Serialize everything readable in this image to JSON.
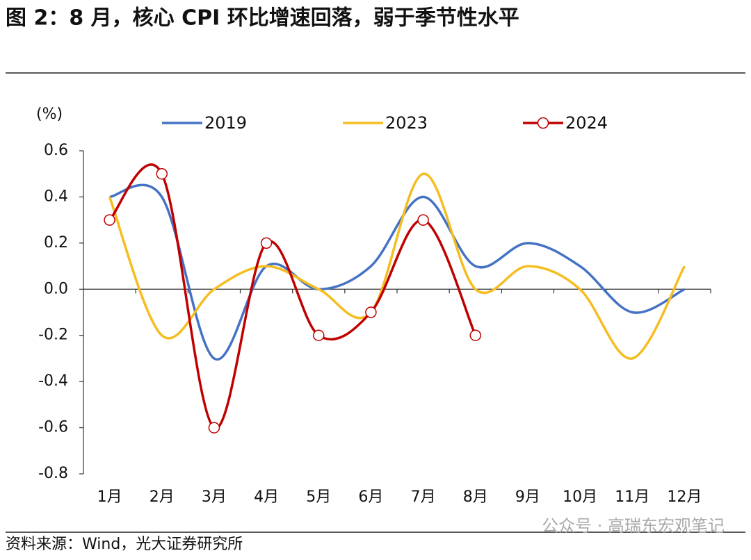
{
  "chart_data": {
    "type": "line",
    "title": "图 2：8 月，核心 CPI 环比增速回落，弱于季节性水平",
    "y_label": "(%)",
    "categories": [
      "1月",
      "2月",
      "3月",
      "4月",
      "5月",
      "6月",
      "7月",
      "8月",
      "9月",
      "10月",
      "11月",
      "12月"
    ],
    "series": [
      {
        "name": "2019",
        "color": "#4472c4",
        "values": [
          0.4,
          0.4,
          -0.3,
          0.1,
          0.0,
          0.1,
          0.4,
          0.1,
          0.2,
          0.1,
          -0.1,
          0.0
        ]
      },
      {
        "name": "2023",
        "color": "#f5bd1f",
        "values": [
          0.4,
          -0.2,
          0.0,
          0.1,
          0.0,
          -0.1,
          0.5,
          0.0,
          0.1,
          0.0,
          -0.3,
          0.1
        ]
      },
      {
        "name": "2024",
        "color": "#c00000",
        "markers": true,
        "values": [
          0.3,
          0.5,
          -0.6,
          0.2,
          -0.2,
          -0.1,
          0.3,
          -0.2,
          null,
          null,
          null,
          null
        ]
      }
    ],
    "ylim": [
      -0.8,
      0.6
    ],
    "yticks": [
      0.6,
      0.4,
      0.2,
      {
        "value": 0,
        "label": "0.0"
      },
      -0.2,
      -0.4,
      -0.6,
      -0.8
    ],
    "source": "资料来源：Wind，光大证券研究所",
    "watermark": "公众号 · 高瑞东宏观笔记"
  }
}
